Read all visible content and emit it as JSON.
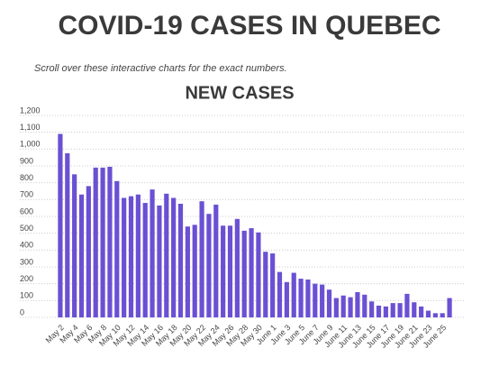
{
  "chart_data": {
    "type": "bar",
    "title": "COVID-19 CASES IN QUEBEC",
    "subtitle": "Scroll over these interactive charts for the exact numbers.",
    "chart_title": "NEW CASES",
    "categories": [
      "May 2",
      null,
      "May 4",
      null,
      "May 6",
      null,
      "May 8",
      null,
      "May 10",
      null,
      "May 12",
      null,
      "May 14",
      null,
      "May 16",
      null,
      "May 18",
      null,
      "May 20",
      null,
      "May 22",
      null,
      "May 24",
      null,
      "May 26",
      null,
      "May 28",
      null,
      "May 30",
      null,
      "June 1",
      null,
      "June 3",
      null,
      "June 5",
      null,
      "June 7",
      null,
      "June 9",
      null,
      "June 11",
      null,
      "June 13",
      null,
      "June 15",
      null,
      "June 17",
      null,
      "June 19",
      null,
      "June 21",
      null,
      "June 23",
      null,
      "June 25",
      null
    ],
    "values": [
      1090,
      975,
      850,
      730,
      780,
      890,
      890,
      895,
      810,
      710,
      720,
      730,
      680,
      760,
      665,
      735,
      710,
      675,
      540,
      550,
      690,
      615,
      670,
      545,
      545,
      585,
      515,
      530,
      505,
      390,
      380,
      270,
      210,
      265,
      230,
      225,
      200,
      195,
      165,
      115,
      130,
      120,
      150,
      135,
      95,
      70,
      65,
      85,
      85,
      140,
      90,
      65,
      40,
      25,
      25,
      115
    ],
    "color": "#6a50d3",
    "ylim": [
      0,
      1200
    ],
    "yticks": [
      0,
      100,
      200,
      300,
      400,
      500,
      600,
      700,
      800,
      900,
      {
        "value": 1000,
        "label": "1,000"
      },
      {
        "value": 1100,
        "label": "1,100"
      },
      {
        "value": 1200,
        "label": "1,200"
      }
    ],
    "grid": true
  }
}
